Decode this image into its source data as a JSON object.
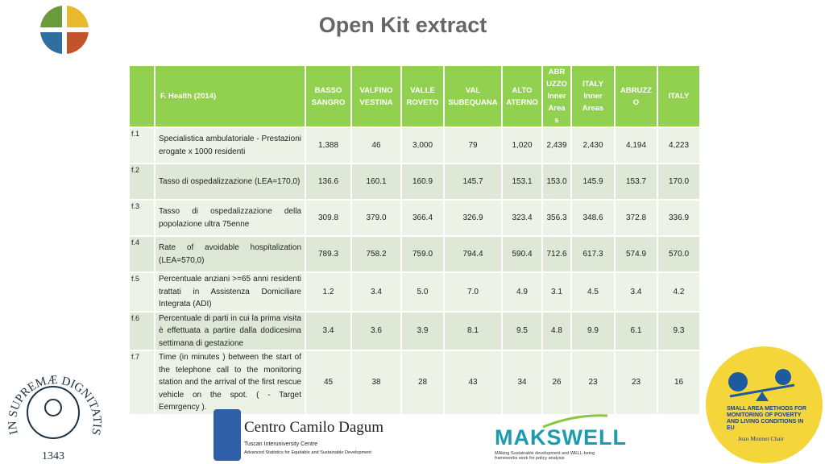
{
  "header": {
    "title": "Open Kit extract"
  },
  "table": {
    "corner": "F. Health (2014)",
    "columns": [
      "BASSO SANGRO",
      "VALFINO VESTINA",
      "VALLE ROVETO",
      "VAL SUBEQUANA",
      "ALTO ATERNO",
      "ABRUZZO Inner Areas",
      "ITALY Inner Areas",
      "ABRUZZO",
      "ITALY"
    ],
    "rows": [
      {
        "id": "f.1",
        "label": "Specialistica ambulatoriale - Prestazioni erogate x 1000 residenti",
        "values": [
          "1,388",
          "46",
          "3,000",
          "79",
          "1,020",
          "2,439",
          "2,430",
          "4,194",
          "4,223"
        ]
      },
      {
        "id": "f.2",
        "label": "Tasso di ospedalizzazione (LEA=170,0)",
        "values": [
          "136.6",
          "160.1",
          "160.9",
          "145.7",
          "153.1",
          "153.0",
          "145.9",
          "153.7",
          "170.0"
        ]
      },
      {
        "id": "f.3",
        "label": "Tasso di ospedalizzazione della popolazione ultra 75enne",
        "values": [
          "309.8",
          "379.0",
          "366.4",
          "326.9",
          "323.4",
          "356.3",
          "348.6",
          "372.8",
          "336.9"
        ]
      },
      {
        "id": "f.4",
        "label": "Rate of avoidable hospitalization (LEA=570,0)",
        "values": [
          "789.3",
          "758.2",
          "759.0",
          "794.4",
          "590.4",
          "712.6",
          "617.3",
          "574.9",
          "570.0"
        ]
      },
      {
        "id": "f.5",
        "label": "Percentuale anziani >=65 anni residenti trattati in Assistenza Domiciliare Integrata (ADI)",
        "values": [
          "1.2",
          "3.4",
          "5.0",
          "7.0",
          "4.9",
          "3.1",
          "4.5",
          "3.4",
          "4.2"
        ]
      },
      {
        "id": "f.6",
        "label": "Percentuale di parti in cui la prima visita è effettuata a partire dalla dodicesima settimana di gestazione",
        "values": [
          "3.4",
          "3.6",
          "3.9",
          "8.1",
          "9.5",
          "4.8",
          "9.9",
          "6.1",
          "9.3"
        ]
      },
      {
        "id": "f.7",
        "label": "Time (in minutes ) between the start of the telephone call to the monitoring station and the arrival of the first rescue vehicle on the spot. ( - Target Eemrgency ).",
        "values": [
          "45",
          "38",
          "28",
          "43",
          "34",
          "26",
          "23",
          "23",
          "16"
        ]
      }
    ]
  },
  "logos": {
    "pisa_motto": "IN SUPREMÆ DIGNITATIS",
    "pisa_year": "1343",
    "dagum_name": "Centro Camilo Dagum",
    "dagum_sub1": "Tuscan Interuniversity Centre",
    "dagum_sub2": "Advanced Statistics for Equitable and Sustainable Development",
    "makswell_name": "MAKSWELL",
    "makswell_sub": "MAking Sustainable development and WELL-being frameworks work for policy analysis",
    "sam_title": "SMALL AREA METHODS FOR MONITORING OF POVERTY AND LIVING CONDITIONS IN EU",
    "sam_chair": "Jean Monnet Chair"
  }
}
